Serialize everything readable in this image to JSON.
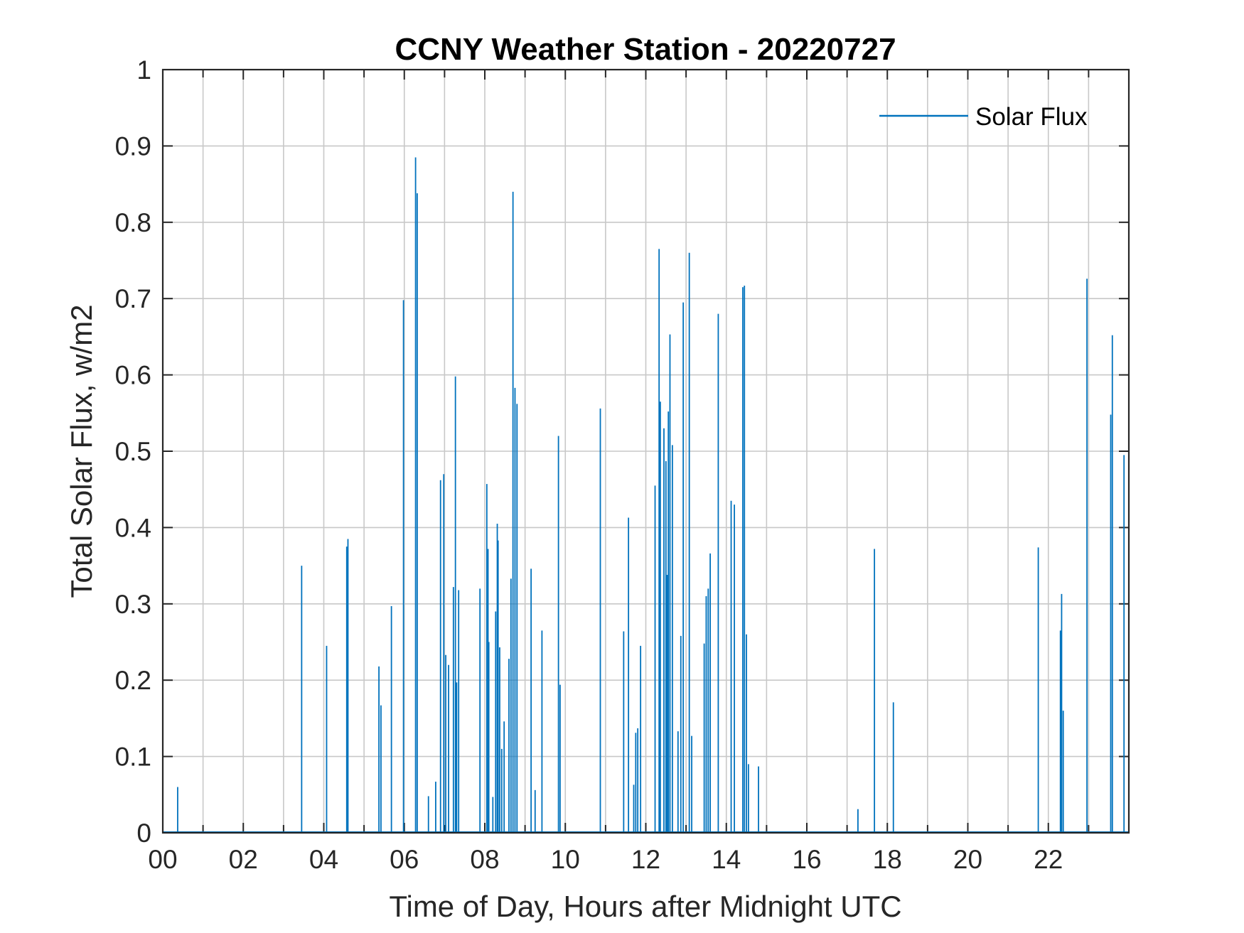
{
  "chart_data": {
    "type": "line",
    "title": "CCNY Weather Station - 20220727",
    "xlabel": "Time of Day, Hours after Midnight UTC",
    "ylabel": "Total Solar Flux, w/m2",
    "xlim": [
      0,
      24
    ],
    "ylim": [
      0,
      1
    ],
    "grid": true,
    "legend_position": "top-right",
    "x_ticks": [
      0,
      2,
      4,
      6,
      8,
      10,
      12,
      14,
      16,
      18,
      20,
      22
    ],
    "x_tick_labels": [
      "00",
      "02",
      "04",
      "06",
      "08",
      "10",
      "12",
      "14",
      "16",
      "18",
      "20",
      "22"
    ],
    "y_ticks": [
      0,
      0.1,
      0.2,
      0.3,
      0.4,
      0.5,
      0.6,
      0.7,
      0.8,
      0.9,
      1
    ],
    "y_tick_labels": [
      "0",
      "0.1",
      "0.2",
      "0.3",
      "0.4",
      "0.5",
      "0.6",
      "0.7",
      "0.8",
      "0.9",
      "1"
    ],
    "series": [
      {
        "name": "Solar Flux",
        "color": "#0072BD",
        "x": [
          0.37,
          3.45,
          4.07,
          4.57,
          4.6,
          5.37,
          5.42,
          5.68,
          5.98,
          6.28,
          6.32,
          6.6,
          6.78,
          6.9,
          6.98,
          7.03,
          7.1,
          7.22,
          7.27,
          7.3,
          7.35,
          7.88,
          8.05,
          8.08,
          8.1,
          8.2,
          8.27,
          8.31,
          8.33,
          8.37,
          8.42,
          8.48,
          8.6,
          8.65,
          8.7,
          8.75,
          8.8,
          9.15,
          9.25,
          9.42,
          9.83,
          9.87,
          10.87,
          11.45,
          11.57,
          11.7,
          11.75,
          11.8,
          11.87,
          12.23,
          12.33,
          12.36,
          12.45,
          12.5,
          12.53,
          12.56,
          12.6,
          12.66,
          12.8,
          12.87,
          12.93,
          13.08,
          13.14,
          13.45,
          13.5,
          13.55,
          13.6,
          13.8,
          14.12,
          14.2,
          14.41,
          14.45,
          14.5,
          14.55,
          14.8,
          17.27,
          17.68,
          18.15,
          21.75,
          22.3,
          22.33,
          22.37,
          22.96,
          23.55,
          23.59,
          23.88
        ],
        "y": [
          0.06,
          0.35,
          0.245,
          0.375,
          0.385,
          0.218,
          0.167,
          0.297,
          0.698,
          0.885,
          0.838,
          0.048,
          0.067,
          0.462,
          0.47,
          0.233,
          0.22,
          0.322,
          0.598,
          0.197,
          0.318,
          0.32,
          0.457,
          0.372,
          0.25,
          0.047,
          0.29,
          0.405,
          0.383,
          0.243,
          0.11,
          0.146,
          0.228,
          0.333,
          0.84,
          0.583,
          0.562,
          0.346,
          0.056,
          0.265,
          0.52,
          0.194,
          0.556,
          0.264,
          0.413,
          0.063,
          0.131,
          0.137,
          0.245,
          0.455,
          0.765,
          0.565,
          0.53,
          0.487,
          0.338,
          0.552,
          0.653,
          0.508,
          0.133,
          0.258,
          0.695,
          0.76,
          0.127,
          0.248,
          0.31,
          0.32,
          0.366,
          0.68,
          0.435,
          0.43,
          0.715,
          0.717,
          0.26,
          0.09,
          0.087,
          0.031,
          0.372,
          0.171,
          0.374,
          0.265,
          0.313,
          0.16,
          0.726,
          0.548,
          0.652,
          0.495
        ]
      }
    ]
  }
}
